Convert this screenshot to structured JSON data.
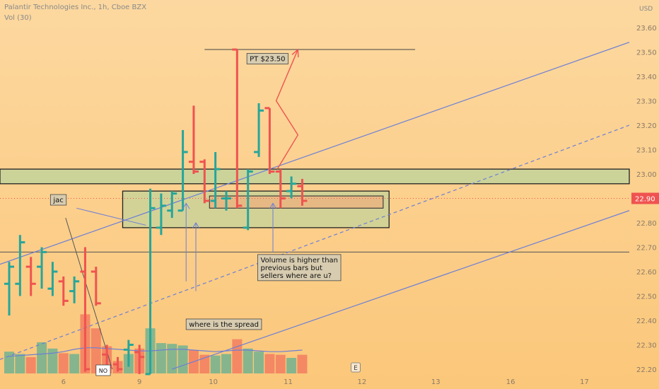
{
  "header": {
    "title": "Palantir Technologies Inc., 1h, Cboe BZX",
    "volume_label": "Vol (30)",
    "currency": "USD"
  },
  "colors": {
    "background_top": "#fcd8a0",
    "background_bottom": "#fbc77a",
    "up": "#26a69a",
    "down": "#ef5350",
    "trendline": "#6c7fd6",
    "zone_fill": "#c6d39a",
    "order_box_fill": "#e6b984",
    "price_tag": "#ef5350",
    "target_arrow": "#ef5350"
  },
  "chart_data": {
    "type": "ohlc",
    "price_axis": {
      "ylim": [
        22.17,
        23.67
      ],
      "ticks": [
        "22.20",
        "22.30",
        "22.40",
        "22.50",
        "22.60",
        "22.70",
        "22.80",
        "22.90",
        "23.00",
        "23.10",
        "23.20",
        "23.30",
        "23.40",
        "23.50",
        "23.60"
      ],
      "current_price": "22.90"
    },
    "time_axis": {
      "ticks": [
        "6",
        "9",
        "10",
        "11",
        "12",
        "13",
        "16",
        "17"
      ]
    },
    "bars": [
      {
        "o": 22.55,
        "h": 22.64,
        "l": 22.42,
        "c": 22.62,
        "v": 28
      },
      {
        "o": 22.55,
        "h": 22.75,
        "l": 22.5,
        "c": 22.72,
        "v": 25
      },
      {
        "o": 22.62,
        "h": 22.66,
        "l": 22.5,
        "c": 22.55,
        "v": 21
      },
      {
        "o": 22.62,
        "h": 22.7,
        "l": 22.53,
        "c": 22.68,
        "v": 40
      },
      {
        "o": 22.53,
        "h": 22.64,
        "l": 22.5,
        "c": 22.6,
        "v": 32
      },
      {
        "o": 22.56,
        "h": 22.58,
        "l": 22.46,
        "c": 22.48,
        "v": 26
      },
      {
        "o": 22.52,
        "h": 22.58,
        "l": 22.47,
        "c": 22.56,
        "v": 25
      },
      {
        "o": 22.6,
        "h": 22.7,
        "l": 22.19,
        "c": 22.2,
        "v": 76
      },
      {
        "o": 22.6,
        "h": 22.62,
        "l": 22.46,
        "c": 22.47,
        "v": 58
      },
      {
        "o": 22.26,
        "h": 22.3,
        "l": 22.18,
        "c": 22.21,
        "v": 35
      },
      {
        "o": 22.22,
        "h": 22.25,
        "l": 22.19,
        "c": 22.2,
        "v": 16
      },
      {
        "o": 22.28,
        "h": 22.32,
        "l": 22.21,
        "c": 22.3,
        "v": 25
      },
      {
        "o": 22.27,
        "h": 22.3,
        "l": 22.18,
        "c": 22.25,
        "v": 32
      },
      {
        "o": 22.18,
        "h": 22.94,
        "l": 22.18,
        "c": 22.86,
        "v": 58
      },
      {
        "o": 22.78,
        "h": 22.92,
        "l": 22.75,
        "c": 22.87,
        "v": 39
      },
      {
        "o": 22.85,
        "h": 22.93,
        "l": 22.82,
        "c": 22.92,
        "v": 38
      },
      {
        "o": 22.85,
        "h": 23.18,
        "l": 22.85,
        "c": 23.09,
        "v": 36
      },
      {
        "o": 23.05,
        "h": 23.28,
        "l": 23.0,
        "c": 23.01,
        "v": 30
      },
      {
        "o": 23.05,
        "h": 23.06,
        "l": 22.88,
        "c": 22.89,
        "v": 24
      },
      {
        "o": 22.89,
        "h": 23.09,
        "l": 22.86,
        "c": 23.02,
        "v": 23
      },
      {
        "o": 22.9,
        "h": 22.93,
        "l": 22.85,
        "c": 22.9,
        "v": 25
      },
      {
        "o": 23.51,
        "h": 23.51,
        "l": 22.86,
        "c": 22.87,
        "v": 44
      },
      {
        "o": 22.78,
        "h": 23.02,
        "l": 22.77,
        "c": 23.01,
        "v": 32
      },
      {
        "o": 23.09,
        "h": 23.29,
        "l": 23.07,
        "c": 23.26,
        "v": 28
      },
      {
        "o": 23.27,
        "h": 23.27,
        "l": 23.0,
        "c": 23.01,
        "v": 25
      },
      {
        "o": 23.01,
        "h": 23.02,
        "l": 22.86,
        "c": 22.9,
        "v": 24
      },
      {
        "o": 22.93,
        "h": 22.99,
        "l": 22.9,
        "c": 22.96,
        "v": 20
      },
      {
        "o": 22.95,
        "h": 22.98,
        "l": 22.87,
        "c": 22.89,
        "v": 24
      }
    ],
    "volume_average": [
      22,
      23,
      24,
      25,
      26,
      28,
      31,
      33,
      33,
      32,
      31,
      30,
      29,
      29,
      30,
      31,
      31,
      30,
      29,
      28,
      29,
      30,
      30,
      29,
      28,
      28,
      29,
      30
    ],
    "horizontal_levels": [
      {
        "price": 23.51,
        "style": "solid",
        "name": "target"
      },
      {
        "price": 22.68,
        "style": "solid",
        "name": "support"
      }
    ],
    "zones": [
      {
        "name": "resistance-zone",
        "top": 23.02,
        "bottom": 22.96
      },
      {
        "name": "consolidation-box",
        "top": 22.93,
        "bottom": 22.78
      },
      {
        "name": "order-box",
        "top": 22.91,
        "bottom": 22.86
      }
    ],
    "annotations": {
      "target_label": "PT $23.50",
      "jac_label": "jac",
      "volume_note": "Volume is higher than previous bars but sellers where are u?",
      "spread_note": "where is the spread",
      "volume_marker": "NO",
      "event_marker": "E"
    }
  }
}
